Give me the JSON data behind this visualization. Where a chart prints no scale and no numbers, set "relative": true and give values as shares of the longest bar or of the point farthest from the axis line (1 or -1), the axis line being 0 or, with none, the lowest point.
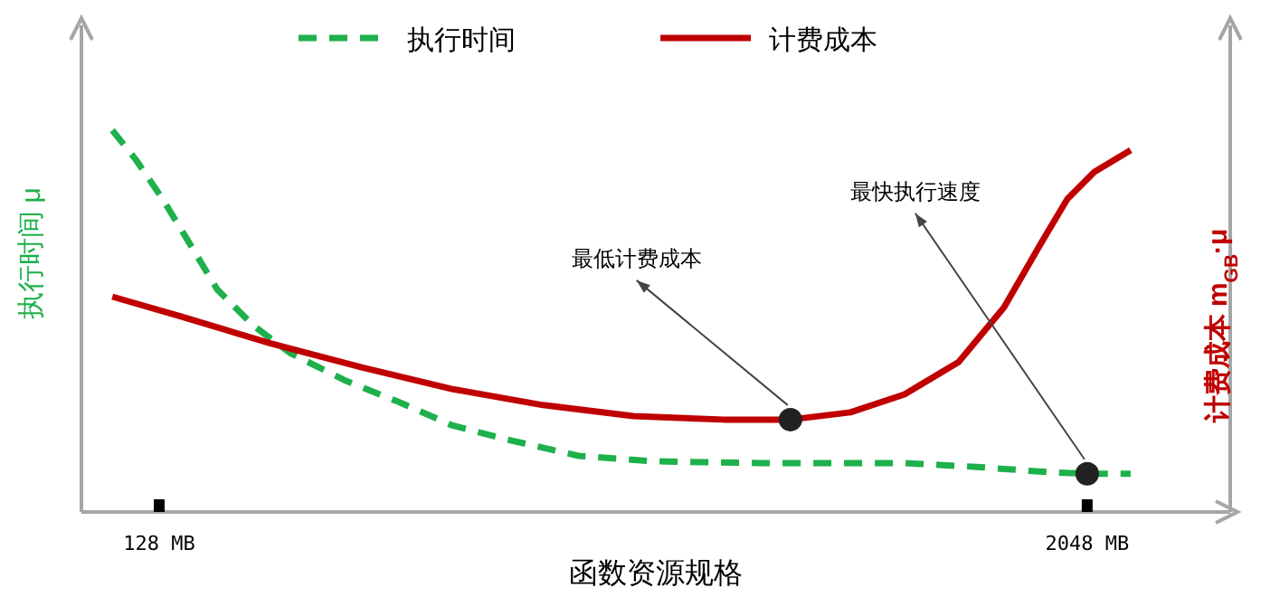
{
  "chart_data": {
    "type": "line",
    "relative": true,
    "xlabel": "函数资源规格",
    "ylabel": "执行时间 μ",
    "y2label": "计费成本 m$_{GB}$·μ",
    "xlim": [
      -33,
      2344
    ],
    "xticks": [
      {
        "value": 128,
        "label": "128 MB"
      },
      {
        "value": 2048,
        "label": "2048 MB"
      }
    ],
    "legend": "top",
    "series": [
      {
        "name": "执行时间",
        "color": "#1db04b",
        "line_style": "dashed",
        "x": [
          31,
          79,
          135,
          192,
          248,
          323,
          398,
          510,
          622,
          734,
          847,
          996,
          1146,
          1371,
          1670,
          1820,
          1970,
          2048,
          2138
        ],
        "values": [
          1.0,
          0.924,
          0.82,
          0.701,
          0.583,
          0.488,
          0.417,
          0.346,
          0.289,
          0.227,
          0.19,
          0.147,
          0.133,
          0.128,
          0.128,
          0.118,
          0.104,
          0.1,
          0.1
        ]
      },
      {
        "name": "计费成本",
        "color": "#c00000",
        "line_style": "solid",
        "x": [
          31,
          173,
          360,
          547,
          734,
          922,
          1109,
          1296,
          1434,
          1558,
          1670,
          1782,
          1876,
          1951,
          2007,
          2063,
          2138
        ],
        "values": [
          0.564,
          0.512,
          0.441,
          0.379,
          0.322,
          0.28,
          0.251,
          0.242,
          0.242,
          0.261,
          0.308,
          0.393,
          0.536,
          0.701,
          0.82,
          0.891,
          0.948
        ]
      }
    ],
    "annotations": [
      {
        "text": "最低计费成本",
        "x": 1434,
        "y": 0.242
      },
      {
        "text": "最快执行速度",
        "x": 2048,
        "y": 0.1
      }
    ]
  }
}
